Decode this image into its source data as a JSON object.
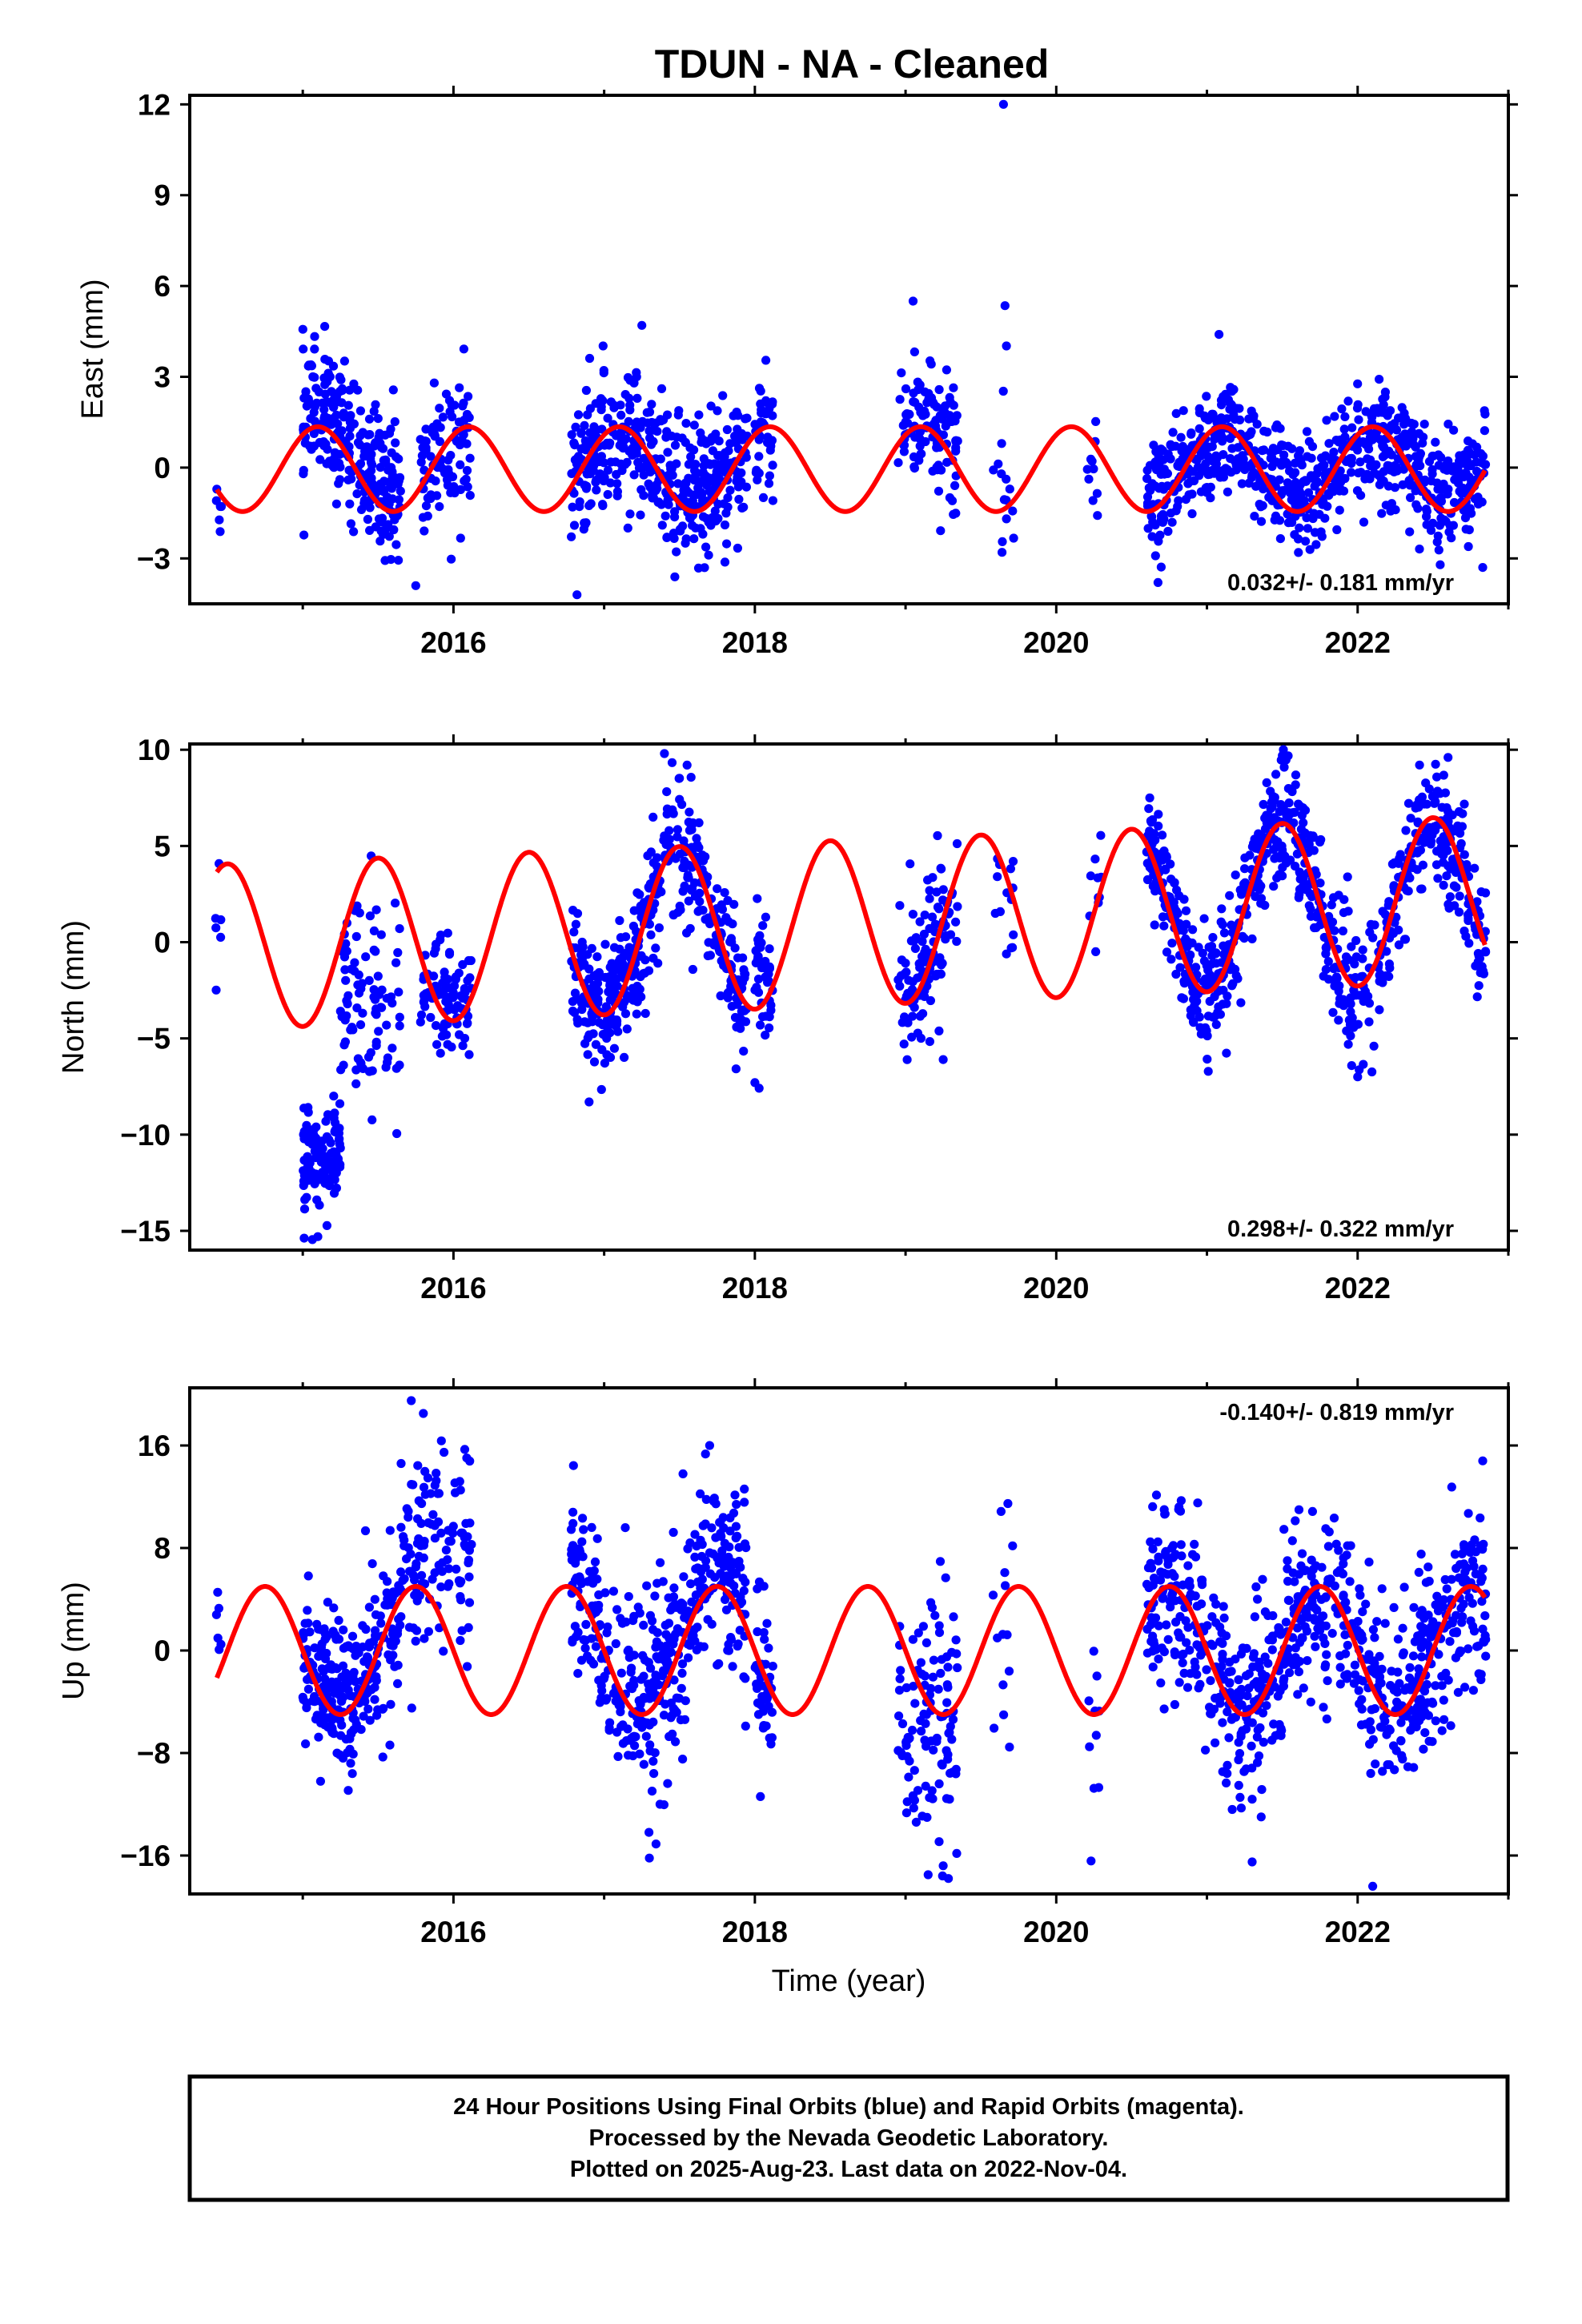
{
  "title": "TDUN  - NA - Cleaned",
  "x_axis_label": "Time (year)",
  "footer": {
    "line1": "24 Hour Positions Using Final Orbits (blue) and Rapid Orbits (magenta).",
    "line2": "Processed by the Nevada Geodetic Laboratory.",
    "line3": "Plotted on 2025-Aug-23. Last data on 2022-Nov-04."
  },
  "colors": {
    "data_points": "#0000ff",
    "seasonal_fit": "#ff0000",
    "frame": "#000000"
  },
  "chart_data": [
    {
      "type": "scatter",
      "name": "east",
      "ylabel": "East (mm)",
      "rate_label": "0.032+/- 0.181 mm/yr",
      "rate_position": "bottom-right",
      "xlim": [
        2014.25,
        2023.0
      ],
      "ylim": [
        -4.5,
        12.3
      ],
      "x_ticks": [
        2016,
        2018,
        2020,
        2022
      ],
      "y_ticks": [
        -3,
        0,
        3,
        6,
        9,
        12
      ],
      "y_tick_labels": [
        "−3",
        "0",
        "3",
        "6",
        "9",
        "12"
      ],
      "fit": {
        "offset": -0.05,
        "amplitude": 1.4,
        "phase_peak": 0.1,
        "start": 2014.43,
        "end": 2022.85
      },
      "gaps": [
        [
          2015.65,
          2015.78
        ],
        [
          2016.15,
          2016.85
        ],
        [
          2017.95,
          2018.0
        ],
        [
          2018.1,
          2018.95
        ],
        [
          2019.35,
          2019.58
        ],
        [
          2019.7,
          2020.2
        ],
        [
          2020.3,
          2020.6
        ]
      ],
      "clusters": [
        {
          "x0": 2014.42,
          "x1": 2014.46,
          "n": 6,
          "mean": -1.0,
          "sd": 0.7,
          "amp": 0
        },
        {
          "x0": 2015.0,
          "x1": 2015.65,
          "n": 260,
          "mean": 0.6,
          "sd": 1.1,
          "amp": 1.2
        },
        {
          "x0": 2015.78,
          "x1": 2016.12,
          "n": 90,
          "mean": 0.0,
          "sd": 1.2,
          "amp": 0.6
        },
        {
          "x0": 2016.78,
          "x1": 2017.95,
          "n": 420,
          "mean": 0.0,
          "sd": 1.1,
          "amp": 0.7
        },
        {
          "x0": 2018.0,
          "x1": 2018.12,
          "n": 45,
          "mean": 1.0,
          "sd": 1.0,
          "amp": 0
        },
        {
          "x0": 2018.95,
          "x1": 2019.35,
          "n": 110,
          "mean": 0.8,
          "sd": 1.2,
          "amp": 0.8
        },
        {
          "x0": 2019.58,
          "x1": 2019.72,
          "n": 14,
          "mean": 0.2,
          "sd": 1.6,
          "amp": 0
        },
        {
          "x0": 2020.2,
          "x1": 2020.3,
          "n": 10,
          "mean": 0.0,
          "sd": 0.7,
          "amp": 0
        },
        {
          "x0": 2020.6,
          "x1": 2022.85,
          "n": 720,
          "mean": 0.0,
          "sd": 0.9,
          "amp": 0.9
        }
      ],
      "extra_points": [
        [
          2019.65,
          12.0
        ],
        [
          2019.66,
          5.35
        ],
        [
          2019.05,
          5.5
        ],
        [
          2017.25,
          4.7
        ],
        [
          2016.82,
          -4.2
        ],
        [
          2015.75,
          -3.9
        ],
        [
          2022.83,
          -3.3
        ],
        [
          2019.64,
          -2.8
        ],
        [
          2021.08,
          4.4
        ]
      ]
    },
    {
      "type": "scatter",
      "name": "north",
      "ylabel": "North (mm)",
      "rate_label": "0.298+/- 0.322 mm/yr",
      "rate_position": "bottom-right",
      "xlim": [
        2014.25,
        2023.0
      ],
      "ylim": [
        -16.0,
        10.3
      ],
      "x_ticks": [
        2016,
        2018,
        2020,
        2022
      ],
      "y_ticks": [
        -15,
        -10,
        -5,
        0,
        5,
        10
      ],
      "y_tick_labels": [
        "−15",
        "−10",
        "−5",
        "0",
        "5",
        "10"
      ],
      "fit": {
        "offset": 1.0,
        "amplitude": 4.3,
        "phase_peak": 0.5,
        "trend": 0.3,
        "start": 2014.43,
        "end": 2022.85
      },
      "gaps": [
        [
          2015.65,
          2015.78
        ],
        [
          2016.15,
          2016.85
        ],
        [
          2017.95,
          2018.0
        ],
        [
          2018.1,
          2018.95
        ],
        [
          2019.35,
          2019.58
        ],
        [
          2019.7,
          2020.2
        ],
        [
          2020.3,
          2020.6
        ]
      ],
      "clusters": [
        {
          "x0": 2014.42,
          "x1": 2014.46,
          "n": 6,
          "mean": -0.8,
          "sd": 1.8,
          "amp": 0
        },
        {
          "x0": 2015.0,
          "x1": 2015.25,
          "n": 110,
          "mean": -11.5,
          "sd": 1.6,
          "amp": 0
        },
        {
          "x0": 2015.25,
          "x1": 2015.65,
          "n": 90,
          "mean": -3.0,
          "sd": 3.0,
          "amp": 0
        },
        {
          "x0": 2015.78,
          "x1": 2016.12,
          "n": 90,
          "mean": -3.0,
          "sd": 1.6,
          "amp": 0
        },
        {
          "x0": 2016.78,
          "x1": 2017.95,
          "n": 420,
          "mean": 0.5,
          "sd": 1.6,
          "amp": 4.0
        },
        {
          "x0": 2018.0,
          "x1": 2018.12,
          "n": 45,
          "mean": -1.5,
          "sd": 1.8,
          "amp": 0
        },
        {
          "x0": 2018.95,
          "x1": 2019.35,
          "n": 110,
          "mean": 1.0,
          "sd": 2.2,
          "amp": 3.0
        },
        {
          "x0": 2019.58,
          "x1": 2019.72,
          "n": 14,
          "mean": 3.0,
          "sd": 2.5,
          "amp": 0
        },
        {
          "x0": 2020.2,
          "x1": 2020.3,
          "n": 10,
          "mean": 2.5,
          "sd": 2.0,
          "amp": 0
        },
        {
          "x0": 2020.6,
          "x1": 2022.85,
          "n": 720,
          "mean": 1.8,
          "sd": 1.6,
          "amp": 4.5
        }
      ],
      "extra_points": [
        [
          2017.4,
          9.8
        ],
        [
          2017.55,
          9.2
        ],
        [
          2021.5,
          9.7
        ],
        [
          2022.6,
          9.6
        ],
        [
          2016.9,
          -8.3
        ],
        [
          2018.0,
          -7.3
        ],
        [
          2022.0,
          -7.0
        ],
        [
          2019.25,
          -6.1
        ],
        [
          2015.1,
          -15.3
        ]
      ]
    },
    {
      "type": "scatter",
      "name": "up",
      "ylabel": "Up (mm)",
      "rate_label": "-0.140+/- 0.819 mm/yr",
      "rate_position": "top-right",
      "xlim": [
        2014.25,
        2023.0
      ],
      "ylim": [
        -19.0,
        20.5
      ],
      "x_ticks": [
        2016,
        2018,
        2020,
        2022
      ],
      "x_tick_labels": [
        "2016",
        "2018",
        "2020",
        "2022"
      ],
      "y_ticks": [
        -16,
        -8,
        0,
        8,
        16
      ],
      "y_tick_labels": [
        "−16",
        "−8",
        "0",
        "8",
        "16"
      ],
      "fit": {
        "offset": 0.0,
        "amplitude": 5.0,
        "phase_peak": 0.75,
        "start": 2014.43,
        "end": 2022.85
      },
      "gaps": [
        [
          2015.65,
          2015.78
        ],
        [
          2016.15,
          2016.85
        ],
        [
          2017.95,
          2018.0
        ],
        [
          2018.1,
          2018.95
        ],
        [
          2019.35,
          2019.58
        ],
        [
          2019.7,
          2020.2
        ],
        [
          2020.3,
          2020.6
        ]
      ],
      "clusters": [
        {
          "x0": 2014.42,
          "x1": 2014.46,
          "n": 6,
          "mean": 1.0,
          "sd": 2.0,
          "amp": 0
        },
        {
          "x0": 2015.0,
          "x1": 2015.65,
          "n": 260,
          "mean": 0.0,
          "sd": 3.0,
          "amp": 4.0
        },
        {
          "x0": 2015.65,
          "x1": 2016.12,
          "n": 120,
          "mean": 8.0,
          "sd": 4.0,
          "amp": 0
        },
        {
          "x0": 2016.78,
          "x1": 2017.95,
          "n": 420,
          "mean": 1.0,
          "sd": 4.0,
          "amp": 6.0
        },
        {
          "x0": 2018.0,
          "x1": 2018.12,
          "n": 45,
          "mean": -3.0,
          "sd": 4.0,
          "amp": 0
        },
        {
          "x0": 2018.95,
          "x1": 2019.35,
          "n": 110,
          "mean": -6.0,
          "sd": 5.0,
          "amp": 0
        },
        {
          "x0": 2019.58,
          "x1": 2019.72,
          "n": 14,
          "mean": 2.0,
          "sd": 5.0,
          "amp": 0
        },
        {
          "x0": 2020.2,
          "x1": 2020.3,
          "n": 10,
          "mean": -8.0,
          "sd": 4.0,
          "amp": 0
        },
        {
          "x0": 2020.6,
          "x1": 2022.85,
          "n": 720,
          "mean": 0.0,
          "sd": 3.5,
          "amp": 4.5
        }
      ],
      "extra_points": [
        [
          2015.72,
          19.5
        ],
        [
          2015.8,
          18.5
        ],
        [
          2017.7,
          16.0
        ],
        [
          2022.83,
          14.8
        ],
        [
          2019.15,
          -17.5
        ],
        [
          2019.25,
          -16.8
        ],
        [
          2017.3,
          -16.2
        ],
        [
          2021.3,
          -16.5
        ],
        [
          2022.1,
          -18.4
        ]
      ]
    }
  ]
}
